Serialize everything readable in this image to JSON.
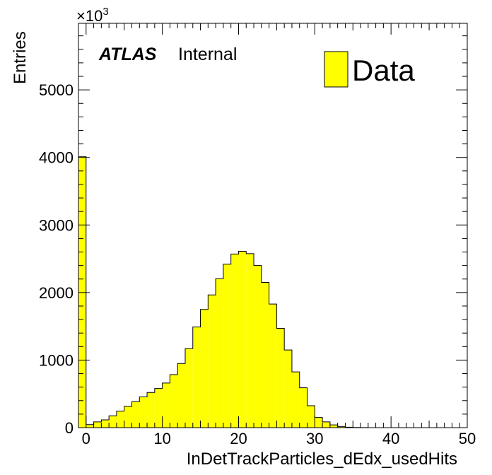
{
  "chart_data": {
    "type": "bar",
    "style": "step-histogram",
    "fill_color": "#ffff00",
    "edge_color": "#000000",
    "xlabel": "InDetTrackParticles_dEdx_usedHits",
    "ylabel": "Entries",
    "y_multiplier": "×10",
    "y_multiplier_exp": "3",
    "xlim": [
      -1,
      50
    ],
    "ylim": [
      0,
      5985
    ],
    "bin_width": 1,
    "x_ticks": [
      0,
      10,
      20,
      30,
      40,
      50
    ],
    "y_ticks": [
      0,
      1000,
      2000,
      3000,
      4000,
      5000
    ],
    "x_tick_labels": [
      "0",
      "10",
      "20",
      "30",
      "40",
      "50"
    ],
    "y_tick_labels": [
      "0",
      "1000",
      "2000",
      "3000",
      "4000",
      "5000"
    ],
    "bin_edges_start": -1,
    "values": [
      4010,
      45,
      85,
      115,
      175,
      245,
      315,
      385,
      455,
      520,
      580,
      660,
      785,
      950,
      1170,
      1490,
      1750,
      1965,
      2205,
      2420,
      2570,
      2610,
      2575,
      2400,
      2150,
      1830,
      1470,
      1150,
      825,
      590,
      325,
      150,
      85,
      40,
      15,
      6,
      3,
      1,
      0,
      0,
      0,
      0,
      0,
      0,
      0,
      0,
      0,
      0,
      0,
      0,
      0
    ],
    "legend": {
      "entries": [
        {
          "label": "Data",
          "color": "#ffff00"
        }
      ],
      "placement": "top-right"
    },
    "annotation": {
      "bold_italic": "ATLAS",
      "plain": "Internal",
      "placement": "top-left"
    },
    "grid": false
  }
}
